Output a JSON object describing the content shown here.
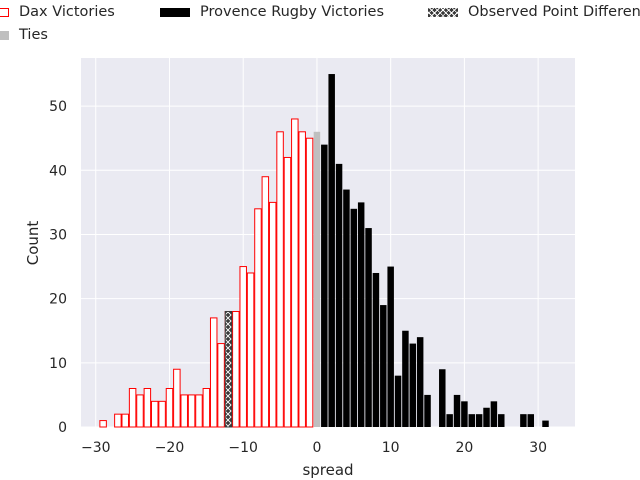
{
  "chart_data": {
    "type": "bar",
    "xlabel": "spread",
    "ylabel": "Count",
    "xlim": [
      -32,
      35
    ],
    "ylim": [
      0,
      57.5
    ],
    "xticks": [
      "−30",
      "−20",
      "−10",
      "0",
      "10",
      "20",
      "30"
    ],
    "yticks": [
      "0",
      "10",
      "20",
      "30",
      "40",
      "50"
    ],
    "grid": true,
    "legend_placement": "top",
    "legend": [
      "Dax Victories",
      "Provence Rugby Victories",
      "Observed Point Difference",
      "Ties"
    ],
    "colors": {
      "dax": "#ff0000",
      "provence": "#000000",
      "ties": "#bfbfbf",
      "observed": "#3a3a3a",
      "plot_bg": "#eaeaf2"
    },
    "series": [
      {
        "name": "Dax Victories",
        "x": [
          -29,
          -27,
          -26,
          -25,
          -24,
          -23,
          -22,
          -21,
          -20,
          -19,
          -18,
          -17,
          -16,
          -15,
          -14,
          -13,
          -12,
          -11,
          -10,
          -9,
          -8,
          -7,
          -6,
          -5,
          -4,
          -3,
          -2,
          -1
        ],
        "values": [
          1,
          2,
          2,
          6,
          5,
          6,
          4,
          4,
          6,
          9,
          5,
          5,
          5,
          6,
          17,
          13,
          18,
          18,
          25,
          24,
          34,
          39,
          35,
          46,
          42,
          48,
          46,
          45
        ]
      },
      {
        "name": "Ties",
        "x": [
          0
        ],
        "values": [
          46
        ]
      },
      {
        "name": "Provence Rugby Victories",
        "x": [
          1,
          2,
          3,
          4,
          5,
          6,
          7,
          8,
          9,
          10,
          11,
          12,
          13,
          14,
          15,
          17,
          18,
          19,
          20,
          21,
          22,
          23,
          24,
          25,
          28,
          29,
          31
        ],
        "values": [
          44,
          55,
          41,
          37,
          34,
          35,
          31,
          24,
          19,
          25,
          8,
          15,
          13,
          14,
          5,
          9,
          2,
          5,
          4,
          2,
          2,
          3,
          4,
          2,
          2,
          2,
          1
        ]
      },
      {
        "name": "Observed Point Difference",
        "x": [
          -12
        ],
        "values": [
          18
        ]
      }
    ]
  }
}
